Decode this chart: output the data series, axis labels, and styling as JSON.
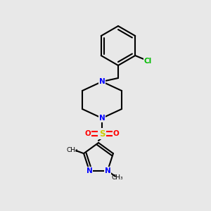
{
  "background_color": "#e8e8e8",
  "bond_color": "#000000",
  "bond_lw": 1.5,
  "atom_colors": {
    "N": "#0000ff",
    "O": "#ff0000",
    "S": "#cccc00",
    "Cl": "#00bb00",
    "C": "#000000"
  },
  "font_size": 7.5,
  "font_size_small": 6.5
}
